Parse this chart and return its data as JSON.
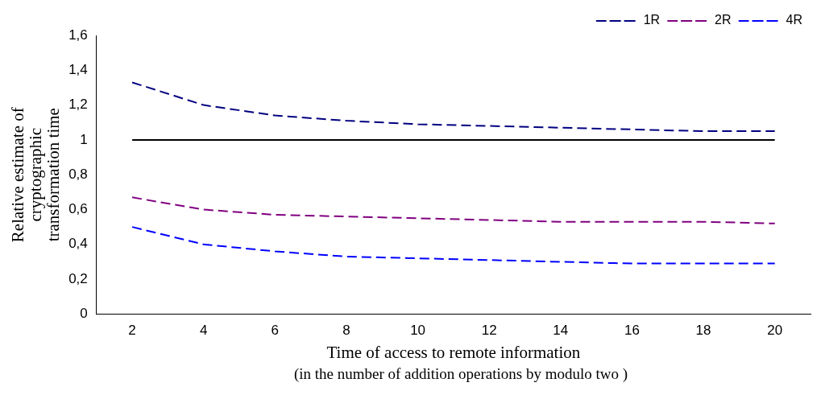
{
  "chart_data": {
    "type": "line",
    "xlabel": "Time of access to remote information",
    "ylabel": "Relative estimate of cryptographic transformation time",
    "annotations": [
      "(in the number of addition operations by modulo two )"
    ],
    "categories": [
      "2",
      "4",
      "6",
      "8",
      "10",
      "12",
      "14",
      "16",
      "18",
      "20"
    ],
    "series": [
      {
        "name": "1R",
        "color": "#000080",
        "line_style": "dashed",
        "values": [
          1.33,
          1.2,
          1.14,
          1.11,
          1.09,
          1.08,
          1.07,
          1.06,
          1.05,
          1.05
        ]
      },
      {
        "name": "2R",
        "color": "#800080",
        "line_style": "dashed",
        "values": [
          0.67,
          0.6,
          0.57,
          0.56,
          0.55,
          0.54,
          0.53,
          0.53,
          0.53,
          0.52
        ]
      },
      {
        "name": "4R",
        "color": "#0000ff",
        "line_style": "dashed",
        "values": [
          0.5,
          0.4,
          0.36,
          0.33,
          0.32,
          0.31,
          0.3,
          0.29,
          0.29,
          0.29
        ]
      },
      {
        "color": "#000000",
        "line_style": "solid",
        "values": [
          1,
          1,
          1,
          1,
          1,
          1,
          1,
          1,
          1,
          1
        ]
      }
    ],
    "ylim": [
      0,
      1.6
    ],
    "yticks": [
      0,
      {
        "value": 0.2,
        "label": "0,2"
      },
      {
        "value": 0.4,
        "label": "0,4"
      },
      {
        "value": 0.6,
        "label": "0,6"
      },
      {
        "value": 0.8,
        "label": "0,8"
      },
      1,
      {
        "value": 1.2,
        "label": "1,2"
      },
      {
        "value": 1.4,
        "label": "1,4"
      },
      {
        "value": 1.6,
        "label": "1,6"
      }
    ],
    "grid": false,
    "legend": "top right",
    "marker": "none"
  }
}
